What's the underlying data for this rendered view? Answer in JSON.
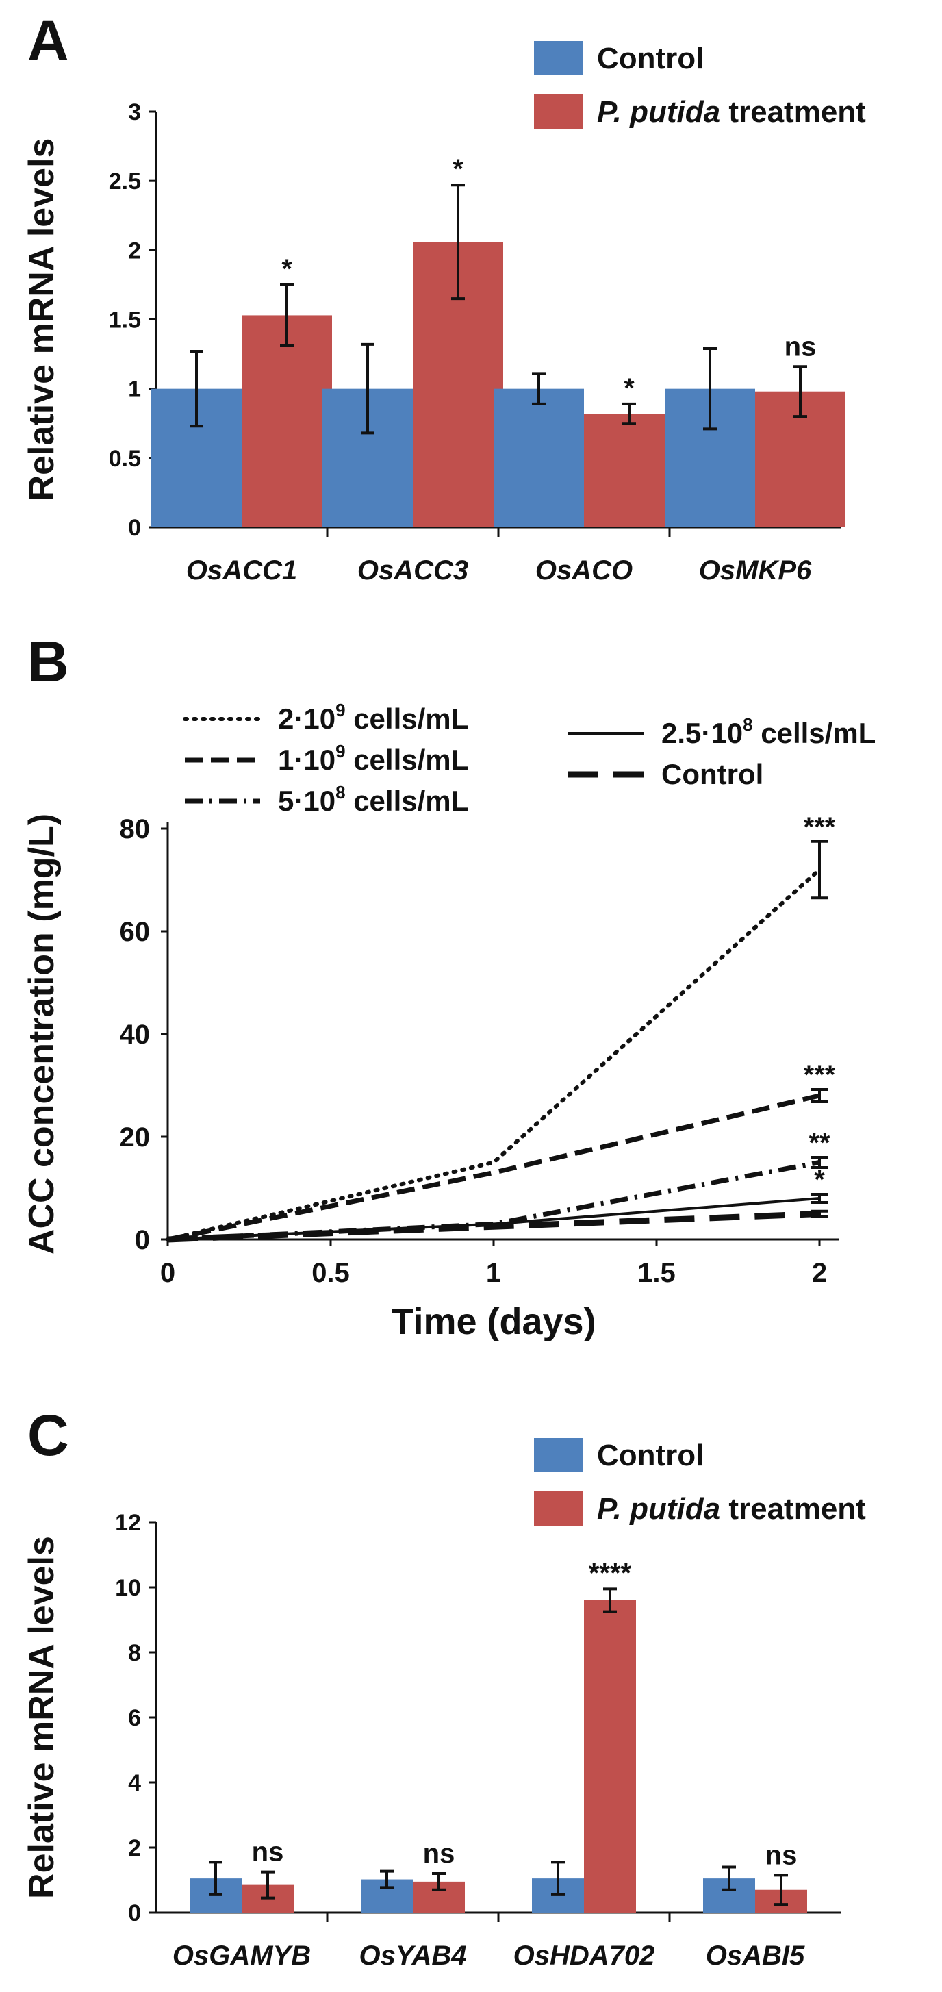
{
  "colors": {
    "control": "#4f81bd",
    "treatment": "#c0504d",
    "ink": "#111111"
  },
  "chart_data": [
    {
      "panel": "A",
      "type": "bar",
      "ylabel": "Relative mRNA levels",
      "ylim": [
        0,
        3
      ],
      "yticks": [
        "0",
        "0.5",
        "1",
        "1.5",
        "2",
        "2.5",
        "3"
      ],
      "categories": [
        "OsACC1",
        "OsACC3",
        "OsACO",
        "OsMKP6"
      ],
      "legend": [
        {
          "label": "Control"
        },
        {
          "label_italic": "P. putida",
          "label_rest": " treatment"
        }
      ],
      "series": [
        {
          "name": "Control",
          "values": [
            1.0,
            1.0,
            1.0,
            1.0
          ],
          "errors": [
            0.27,
            0.32,
            0.11,
            0.29
          ]
        },
        {
          "name": "P. putida treatment",
          "values": [
            1.53,
            2.06,
            0.82,
            0.98
          ],
          "errors": [
            0.22,
            0.41,
            0.07,
            0.18
          ]
        }
      ],
      "significance": [
        "*",
        "*",
        "*",
        "ns"
      ]
    },
    {
      "panel": "B",
      "type": "line",
      "xlabel": "Time (days)",
      "ylabel": "ACC concentration (mg/L)",
      "xlim": [
        0,
        2
      ],
      "ylim": [
        0,
        80
      ],
      "xticks": [
        "0",
        "0.5",
        "1",
        "1.5",
        "2"
      ],
      "yticks": [
        "0",
        "20",
        "40",
        "60",
        "80"
      ],
      "x": [
        0,
        1,
        2
      ],
      "series": [
        {
          "name": "2·10^9 cells/mL",
          "base": "2·10",
          "exp": "9",
          "unit": " cells/mL",
          "dash": "dot",
          "values": [
            0,
            15,
            72
          ],
          "error_end": 5.5,
          "sig": "***"
        },
        {
          "name": "1·10^9 cells/mL",
          "base": "1·10",
          "exp": "9",
          "unit": " cells/mL",
          "dash": "dash",
          "values": [
            0,
            13,
            28
          ],
          "error_end": 1.2,
          "sig": "***"
        },
        {
          "name": "5·10^8 cells/mL",
          "base": "5·10",
          "exp": "8",
          "unit": " cells/mL",
          "dash": "dashdot",
          "values": [
            0,
            3,
            15
          ],
          "error_end": 1.0,
          "sig": "**"
        },
        {
          "name": "2.5·10^8 cells/mL",
          "base": "2.5·10",
          "exp": "8",
          "unit": " cells/mL",
          "dash": "solid",
          "values": [
            0,
            3,
            8
          ],
          "error_end": 0.8,
          "sig": "*"
        },
        {
          "name": "Control",
          "base": "Control",
          "exp": "",
          "unit": "",
          "dash": "longdash",
          "values": [
            0,
            2.5,
            5
          ],
          "error_end": 0.5,
          "sig": ""
        }
      ]
    },
    {
      "panel": "C",
      "type": "bar",
      "ylabel": "Relative mRNA levels",
      "ylim": [
        0,
        12
      ],
      "yticks": [
        "0",
        "2",
        "4",
        "6",
        "8",
        "10",
        "12"
      ],
      "categories": [
        "OsGAMYB",
        "OsYAB4",
        "OsHDA702",
        "OsABI5"
      ],
      "legend": [
        {
          "label": "Control"
        },
        {
          "label_italic": "P. putida",
          "label_rest": " treatment"
        }
      ],
      "series": [
        {
          "name": "Control",
          "values": [
            1.05,
            1.02,
            1.05,
            1.05
          ],
          "errors": [
            0.5,
            0.25,
            0.5,
            0.35
          ]
        },
        {
          "name": "P. putida treatment",
          "values": [
            0.85,
            0.95,
            9.6,
            0.7
          ],
          "errors": [
            0.4,
            0.25,
            0.35,
            0.45
          ]
        }
      ],
      "significance": [
        "ns",
        "ns",
        "****",
        "ns"
      ]
    }
  ]
}
